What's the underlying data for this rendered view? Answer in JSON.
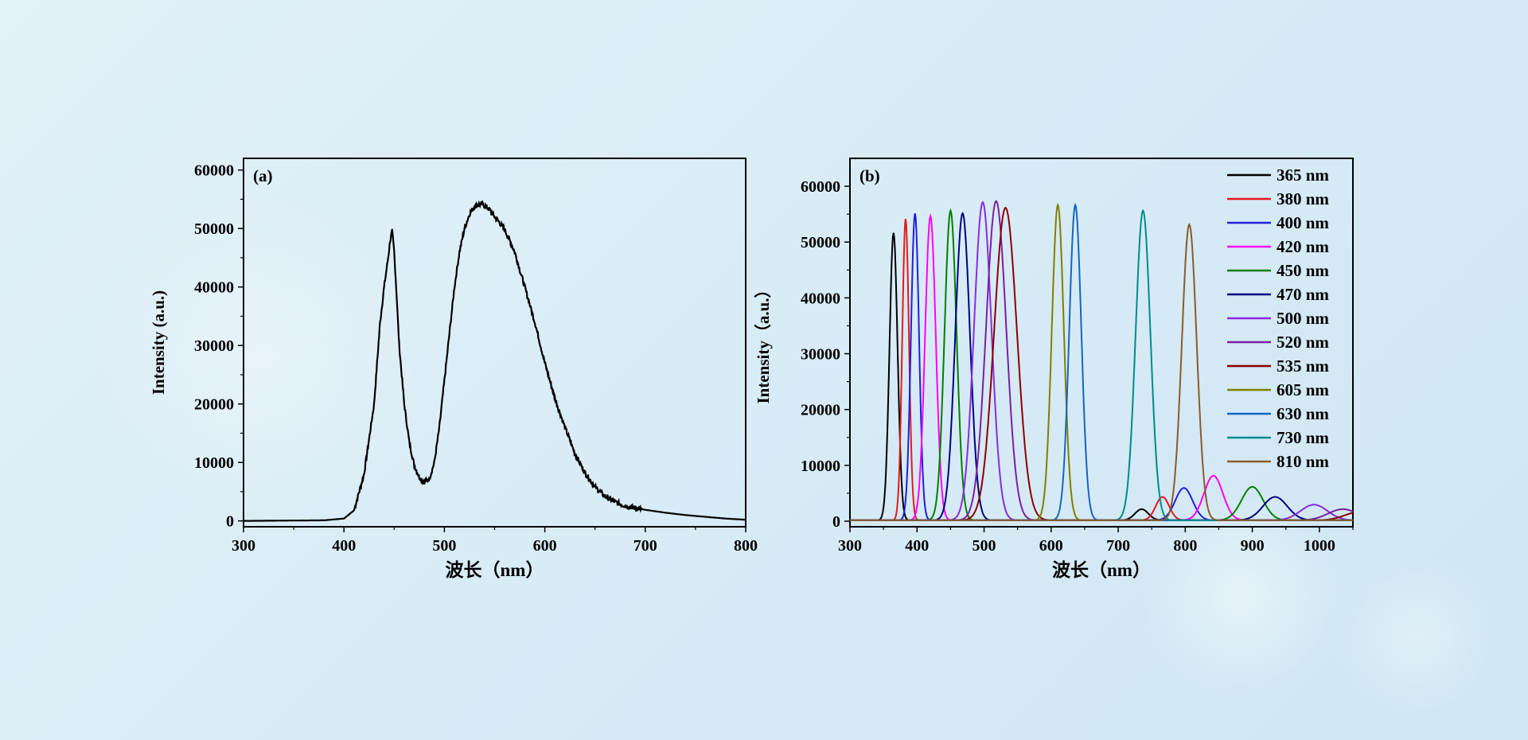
{
  "colors": {
    "background": "#dbedf6",
    "axis": "#000000",
    "panel_a_line": "#000000"
  },
  "chart_data": [
    {
      "type": "line",
      "panel_label": "(a)",
      "xlabel": "波长（nm）",
      "ylabel": "Intensity (a.u.)",
      "xlim": [
        300,
        800
      ],
      "ylim": [
        -1000,
        62000
      ],
      "xticks": [
        "300",
        "400",
        "500",
        "600",
        "700",
        "800"
      ],
      "yticks": [
        "0",
        "10000",
        "20000",
        "30000",
        "40000",
        "50000",
        "60000"
      ],
      "series": [
        {
          "x": [
            300,
            380,
            400,
            410,
            420,
            430,
            436,
            440,
            444,
            446,
            448,
            450,
            452,
            455,
            460,
            465,
            470,
            475,
            480,
            485,
            490,
            495,
            500,
            505,
            510,
            515,
            520,
            525,
            530,
            535,
            540,
            545,
            550,
            555,
            560,
            565,
            570,
            575,
            580,
            590,
            600,
            610,
            620,
            630,
            640,
            650,
            660,
            670,
            680,
            690,
            700,
            720,
            740,
            760,
            780,
            800
          ],
          "y": [
            0,
            100,
            400,
            1800,
            8000,
            20000,
            34000,
            40000,
            45000,
            48000,
            49500,
            46000,
            40000,
            30000,
            20000,
            13500,
            9500,
            7500,
            6600,
            7200,
            10000,
            16000,
            24000,
            32000,
            40000,
            46000,
            50000,
            52500,
            53800,
            54200,
            54000,
            53200,
            52000,
            51000,
            49800,
            48000,
            46000,
            43000,
            40000,
            34000,
            27000,
            21000,
            16000,
            11500,
            8200,
            5800,
            4200,
            3200,
            2600,
            2200,
            1900,
            1400,
            1000,
            700,
            400,
            200
          ]
        }
      ]
    },
    {
      "type": "line",
      "panel_label": "(b)",
      "xlabel": "波长（nm）",
      "ylabel": "Intensity（a.u.）",
      "xlim": [
        300,
        1050
      ],
      "ylim": [
        -1000,
        65000
      ],
      "xticks": [
        "300",
        "400",
        "500",
        "600",
        "700",
        "800",
        "900",
        "1000"
      ],
      "yticks": [
        "0",
        "10000",
        "20000",
        "30000",
        "40000",
        "50000",
        "60000"
      ],
      "legend_position": "top-right",
      "series": [
        {
          "name": "365 nm",
          "color": "#000000",
          "center": 365,
          "peak": 51500,
          "width": 6,
          "second_center": 735,
          "second_peak": 2000,
          "second_width": 10
        },
        {
          "name": "380 nm",
          "color": "#e41a1c",
          "center": 383,
          "peak": 54000,
          "width": 5,
          "second_center": 766,
          "second_peak": 4200,
          "second_width": 10
        },
        {
          "name": "400 nm",
          "color": "#1f1fe0",
          "center": 397,
          "peak": 55000,
          "width": 6,
          "second_center": 798,
          "second_peak": 5800,
          "second_width": 13
        },
        {
          "name": "420 nm",
          "color": "#ff00ff",
          "center": 420,
          "peak": 54500,
          "width": 8,
          "second_center": 842,
          "second_peak": 8000,
          "second_width": 14
        },
        {
          "name": "450 nm",
          "color": "#008000",
          "center": 450,
          "peak": 55500,
          "width": 9,
          "second_center": 900,
          "second_peak": 6000,
          "second_width": 16
        },
        {
          "name": "470 nm",
          "color": "#000080",
          "center": 468,
          "peak": 55000,
          "width": 11,
          "second_center": 934,
          "second_peak": 4200,
          "second_width": 18
        },
        {
          "name": "500 nm",
          "color": "#8a2be2",
          "center": 498,
          "peak": 57000,
          "width": 13,
          "second_center": 992,
          "second_peak": 2800,
          "second_width": 20
        },
        {
          "name": "520 nm",
          "color": "#7b1fa2",
          "center": 518,
          "peak": 57200,
          "width": 15,
          "second_center": 1035,
          "second_peak": 2000,
          "second_width": 22
        },
        {
          "name": "535 nm",
          "color": "#8b0000",
          "center": 532,
          "peak": 56000,
          "width": 17,
          "second_center": 1060,
          "second_peak": 1500,
          "second_width": 22
        },
        {
          "name": "605 nm",
          "color": "#808000",
          "center": 610,
          "peak": 56500,
          "width": 9,
          "second_center": 0,
          "second_peak": 0,
          "second_width": 1
        },
        {
          "name": "630 nm",
          "color": "#1565c0",
          "center": 636,
          "peak": 56500,
          "width": 9,
          "second_center": 0,
          "second_peak": 0,
          "second_width": 1
        },
        {
          "name": "730 nm",
          "color": "#008b8b",
          "center": 737,
          "peak": 55500,
          "width": 11,
          "second_center": 0,
          "second_peak": 0,
          "second_width": 1
        },
        {
          "name": "810 nm",
          "color": "#8b5a2b",
          "center": 806,
          "peak": 53000,
          "width": 11,
          "second_center": 0,
          "second_peak": 0,
          "second_width": 1
        }
      ]
    }
  ]
}
